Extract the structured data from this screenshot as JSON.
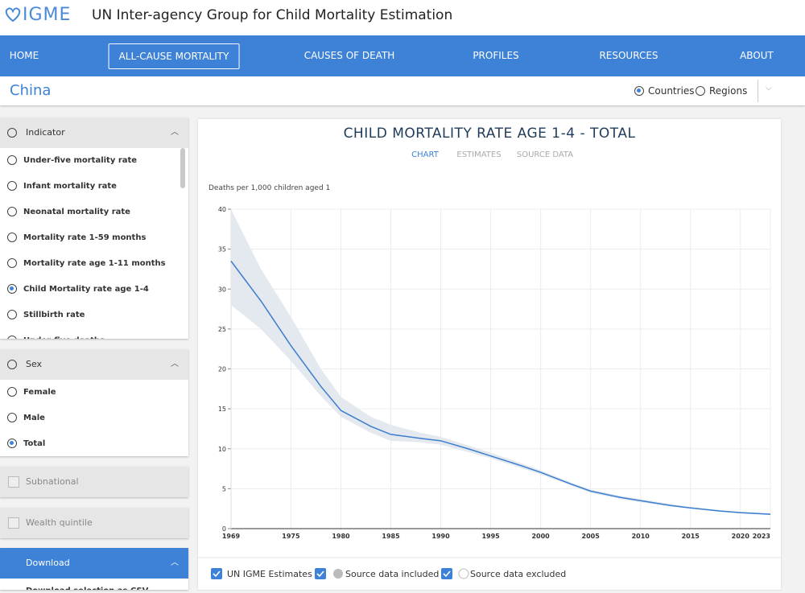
{
  "header": {
    "logo": "IGME",
    "title": "UN Inter-agency Group for Child Mortality Estimation"
  },
  "nav": {
    "items": [
      "HOME",
      "ALL-CAUSE MORTALITY",
      "CAUSES OF DEATH",
      "PROFILES",
      "RESOURCES",
      "ABOUT"
    ],
    "active": 1
  },
  "location": {
    "name": "China",
    "options": [
      "Countries",
      "Regions"
    ],
    "selected": 0
  },
  "indicator": {
    "title": "Indicator",
    "options": [
      "Under-five mortality rate",
      "Infant mortality rate",
      "Neonatal mortality rate",
      "Mortality rate 1-59 months",
      "Mortality rate age 1-11 months",
      "Child Mortality rate age 1-4",
      "Stillbirth rate",
      "Under-five deaths"
    ],
    "selected": 5
  },
  "sex": {
    "title": "Sex",
    "options": [
      "Female",
      "Male",
      "Total"
    ],
    "selected": 2
  },
  "filters": [
    "Subnational",
    "Wealth quintile"
  ],
  "download": {
    "title": "Download",
    "items": [
      "Download selection as CSV"
    ]
  },
  "chart_data": {
    "type": "line",
    "title": "CHILD MORTALITY RATE AGE 1-4 - TOTAL",
    "tabs": [
      "CHART",
      "ESTIMATES",
      "SOURCE DATA"
    ],
    "active_tab": 0,
    "y_label": "Deaths per 1,000 children aged 1",
    "x": [
      1969,
      1972,
      1975,
      1978,
      1980,
      1983,
      1985,
      1988,
      1990,
      1993,
      1995,
      1998,
      2000,
      2003,
      2005,
      2008,
      2010,
      2013,
      2015,
      2018,
      2020,
      2023
    ],
    "series": [
      {
        "name": "UN IGME Estimates",
        "color": "#3b7dd0",
        "band_color": "#e3e9ee",
        "values": [
          33.5,
          28.5,
          22.9,
          17.8,
          14.8,
          12.8,
          11.8,
          11.3,
          11,
          9.9,
          9.1,
          7.9,
          7.05,
          5.6,
          4.7,
          3.9,
          3.5,
          2.9,
          2.6,
          2.2,
          2,
          1.8
        ],
        "lower": [
          28,
          25,
          21,
          16.6,
          14,
          12,
          11,
          10.8,
          10.5,
          9.5,
          8.8,
          7.6,
          6.8,
          5.4,
          4.5,
          3.7,
          3.3,
          2.8,
          2.5,
          2.1,
          1.9,
          1.7
        ],
        "upper": [
          40,
          32.5,
          26.5,
          20,
          16.5,
          14,
          13,
          12,
          11.5,
          10.3,
          9.5,
          8.2,
          7.3,
          5.8,
          4.9,
          4.1,
          3.7,
          3.1,
          2.7,
          2.3,
          2.1,
          1.9
        ]
      }
    ],
    "source_legend": [
      "Source data included",
      "Source data excluded"
    ],
    "xlim": [
      1969,
      2023
    ],
    "xticks": [
      1969,
      1975,
      1980,
      1985,
      1990,
      1995,
      2000,
      2005,
      2010,
      2015,
      2020,
      2023
    ],
    "ylim": [
      0,
      40
    ],
    "yticks": [
      0,
      5,
      10,
      15,
      20,
      25,
      30,
      35,
      40
    ],
    "grid": true
  }
}
